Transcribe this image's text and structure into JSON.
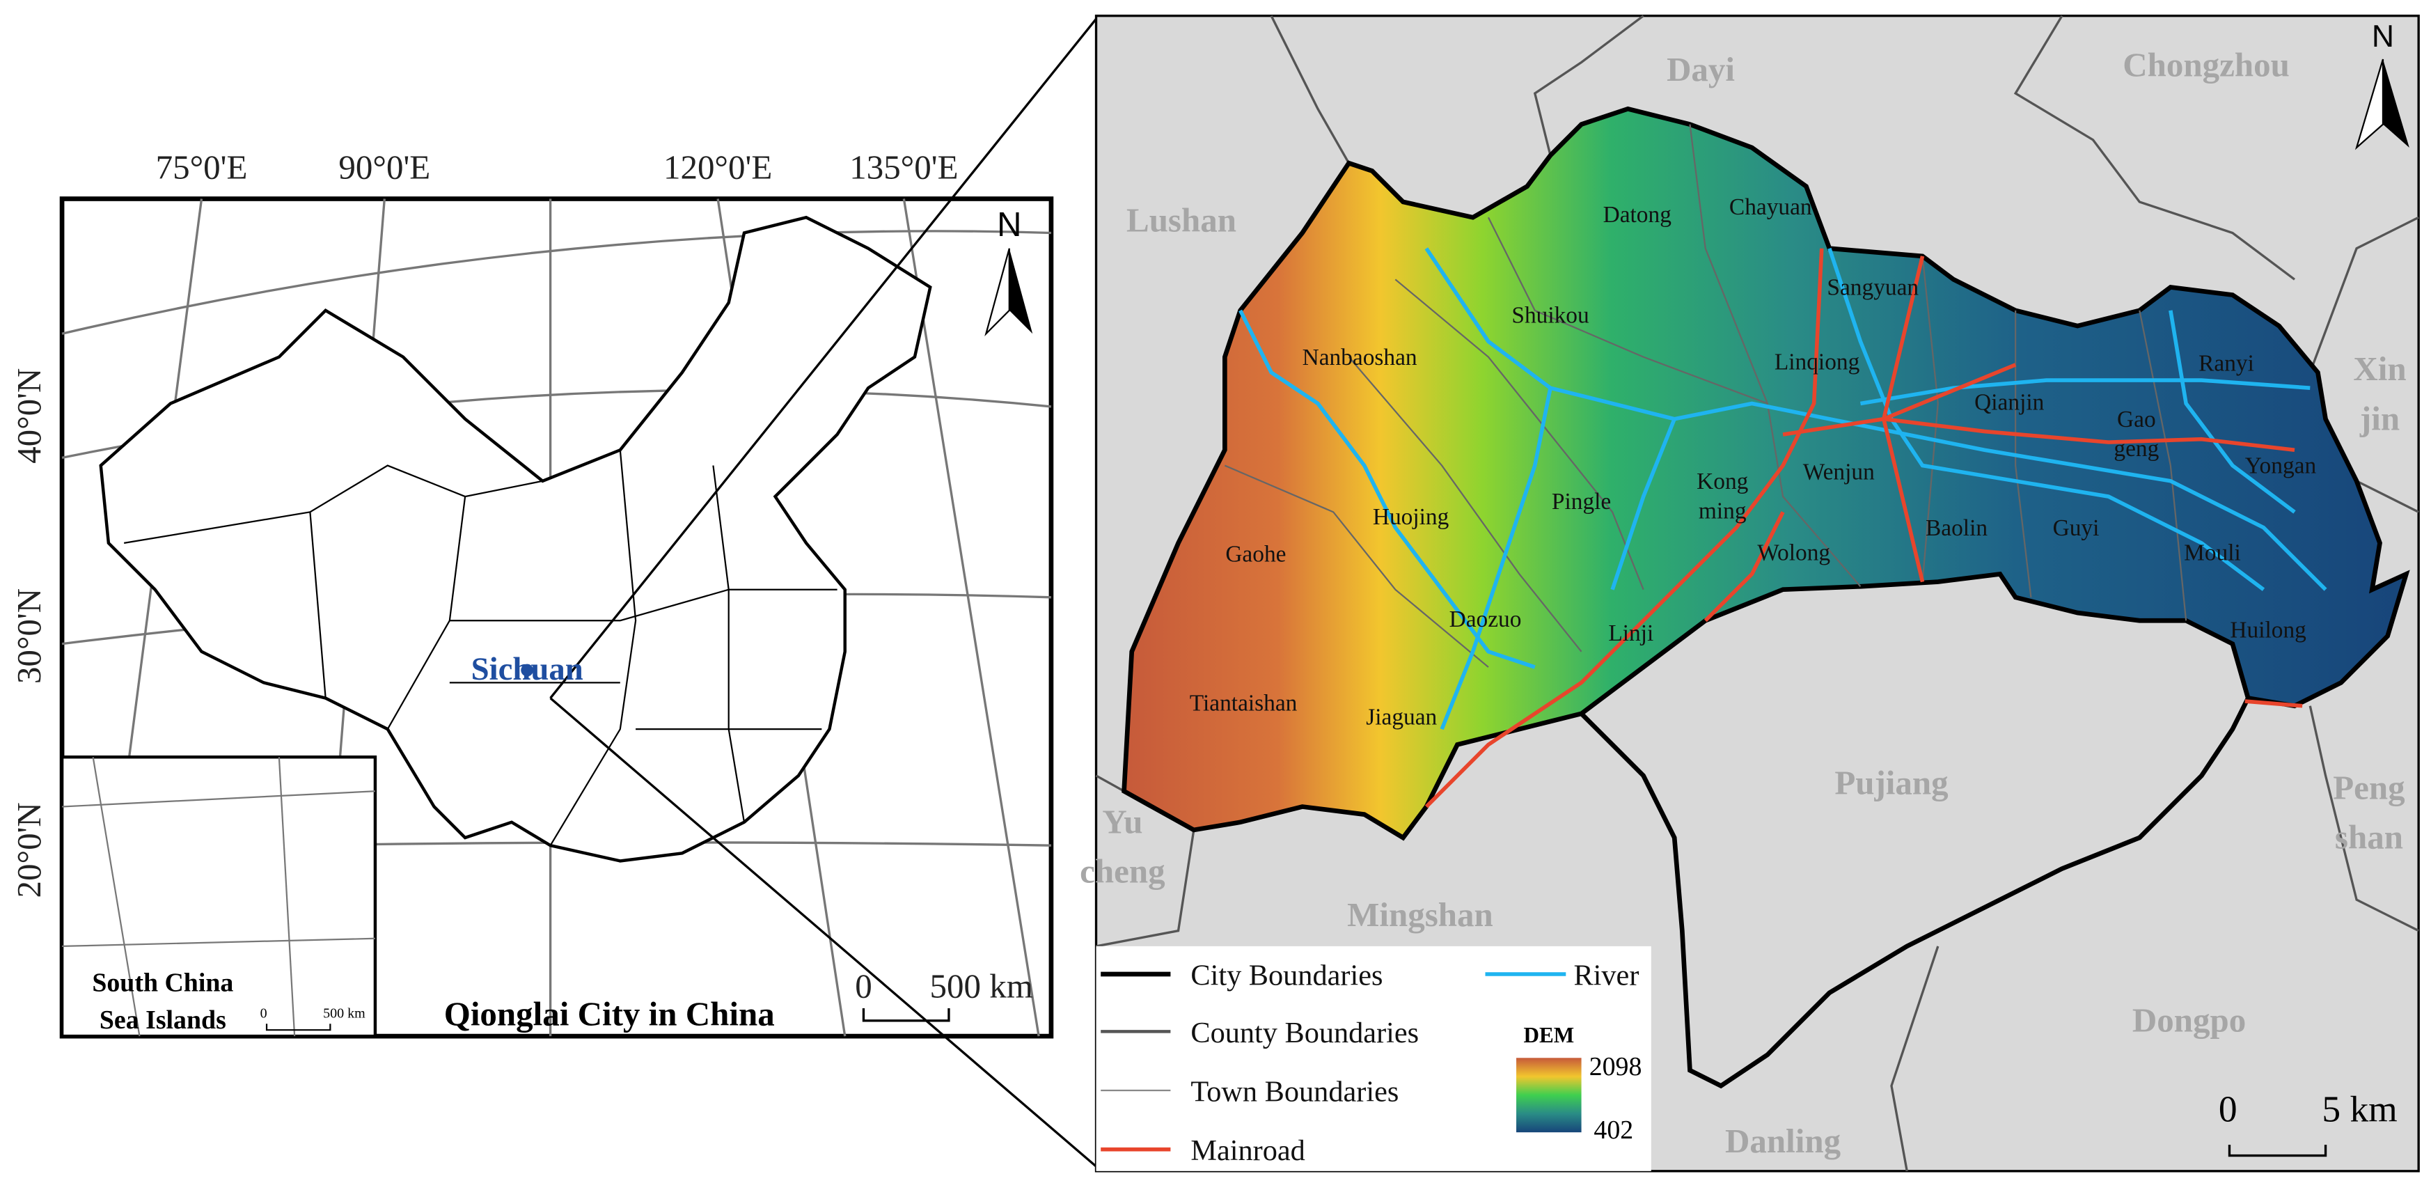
{
  "left_map": {
    "longitude_labels": [
      "75°0'E",
      "90°0'E",
      "120°0'E",
      "135°0'E"
    ],
    "latitude_labels": [
      "40°0'N",
      "30°0'N",
      "20°0'N"
    ],
    "north": "N",
    "province_label": "Sichuan",
    "inset_label": [
      "South China",
      "Sea Islands"
    ],
    "inset_scale": [
      "0",
      "500 km"
    ],
    "scale": [
      "0",
      "500 km"
    ],
    "caption": "Qionglai City in China"
  },
  "right_map": {
    "north": "N",
    "neighbors": [
      [
        "Dayi"
      ],
      [
        "Chongzhou"
      ],
      [
        "Lushan"
      ],
      [
        "Xin",
        "jin"
      ],
      [
        "Yu",
        "cheng"
      ],
      [
        "Mingshan"
      ],
      [
        "Pujiang"
      ],
      [
        "Peng",
        "shan"
      ],
      [
        "Dongpo"
      ],
      [
        "Danling"
      ]
    ],
    "towns": [
      [
        "Datong"
      ],
      [
        "Chayuan"
      ],
      [
        "Sangyuan"
      ],
      [
        "Shuikou"
      ],
      [
        "Nanbaoshan"
      ],
      [
        "Linqiong"
      ],
      [
        "Ranyi"
      ],
      [
        "Qianjin"
      ],
      [
        "Gao",
        "geng"
      ],
      [
        "Yongan"
      ],
      [
        "Wenjun"
      ],
      [
        "Kong",
        "ming"
      ],
      [
        "Pingle"
      ],
      [
        "Huojing"
      ],
      [
        "Baolin"
      ],
      [
        "Guyi"
      ],
      [
        "Mouli"
      ],
      [
        "Gaohe"
      ],
      [
        "Wolong"
      ],
      [
        "Daozuo"
      ],
      [
        "Linji"
      ],
      [
        "Huilong"
      ],
      [
        "Tiantaishan"
      ],
      [
        "Jiaguan"
      ]
    ],
    "scale": [
      "0",
      "5 km"
    ]
  },
  "legend": {
    "items": [
      "City Boundaries",
      "County Boundaries",
      "Town Boundaries",
      "Mainroad",
      "River"
    ],
    "dem_title": "DEM",
    "dem_max": 2098,
    "dem_min": 402
  }
}
